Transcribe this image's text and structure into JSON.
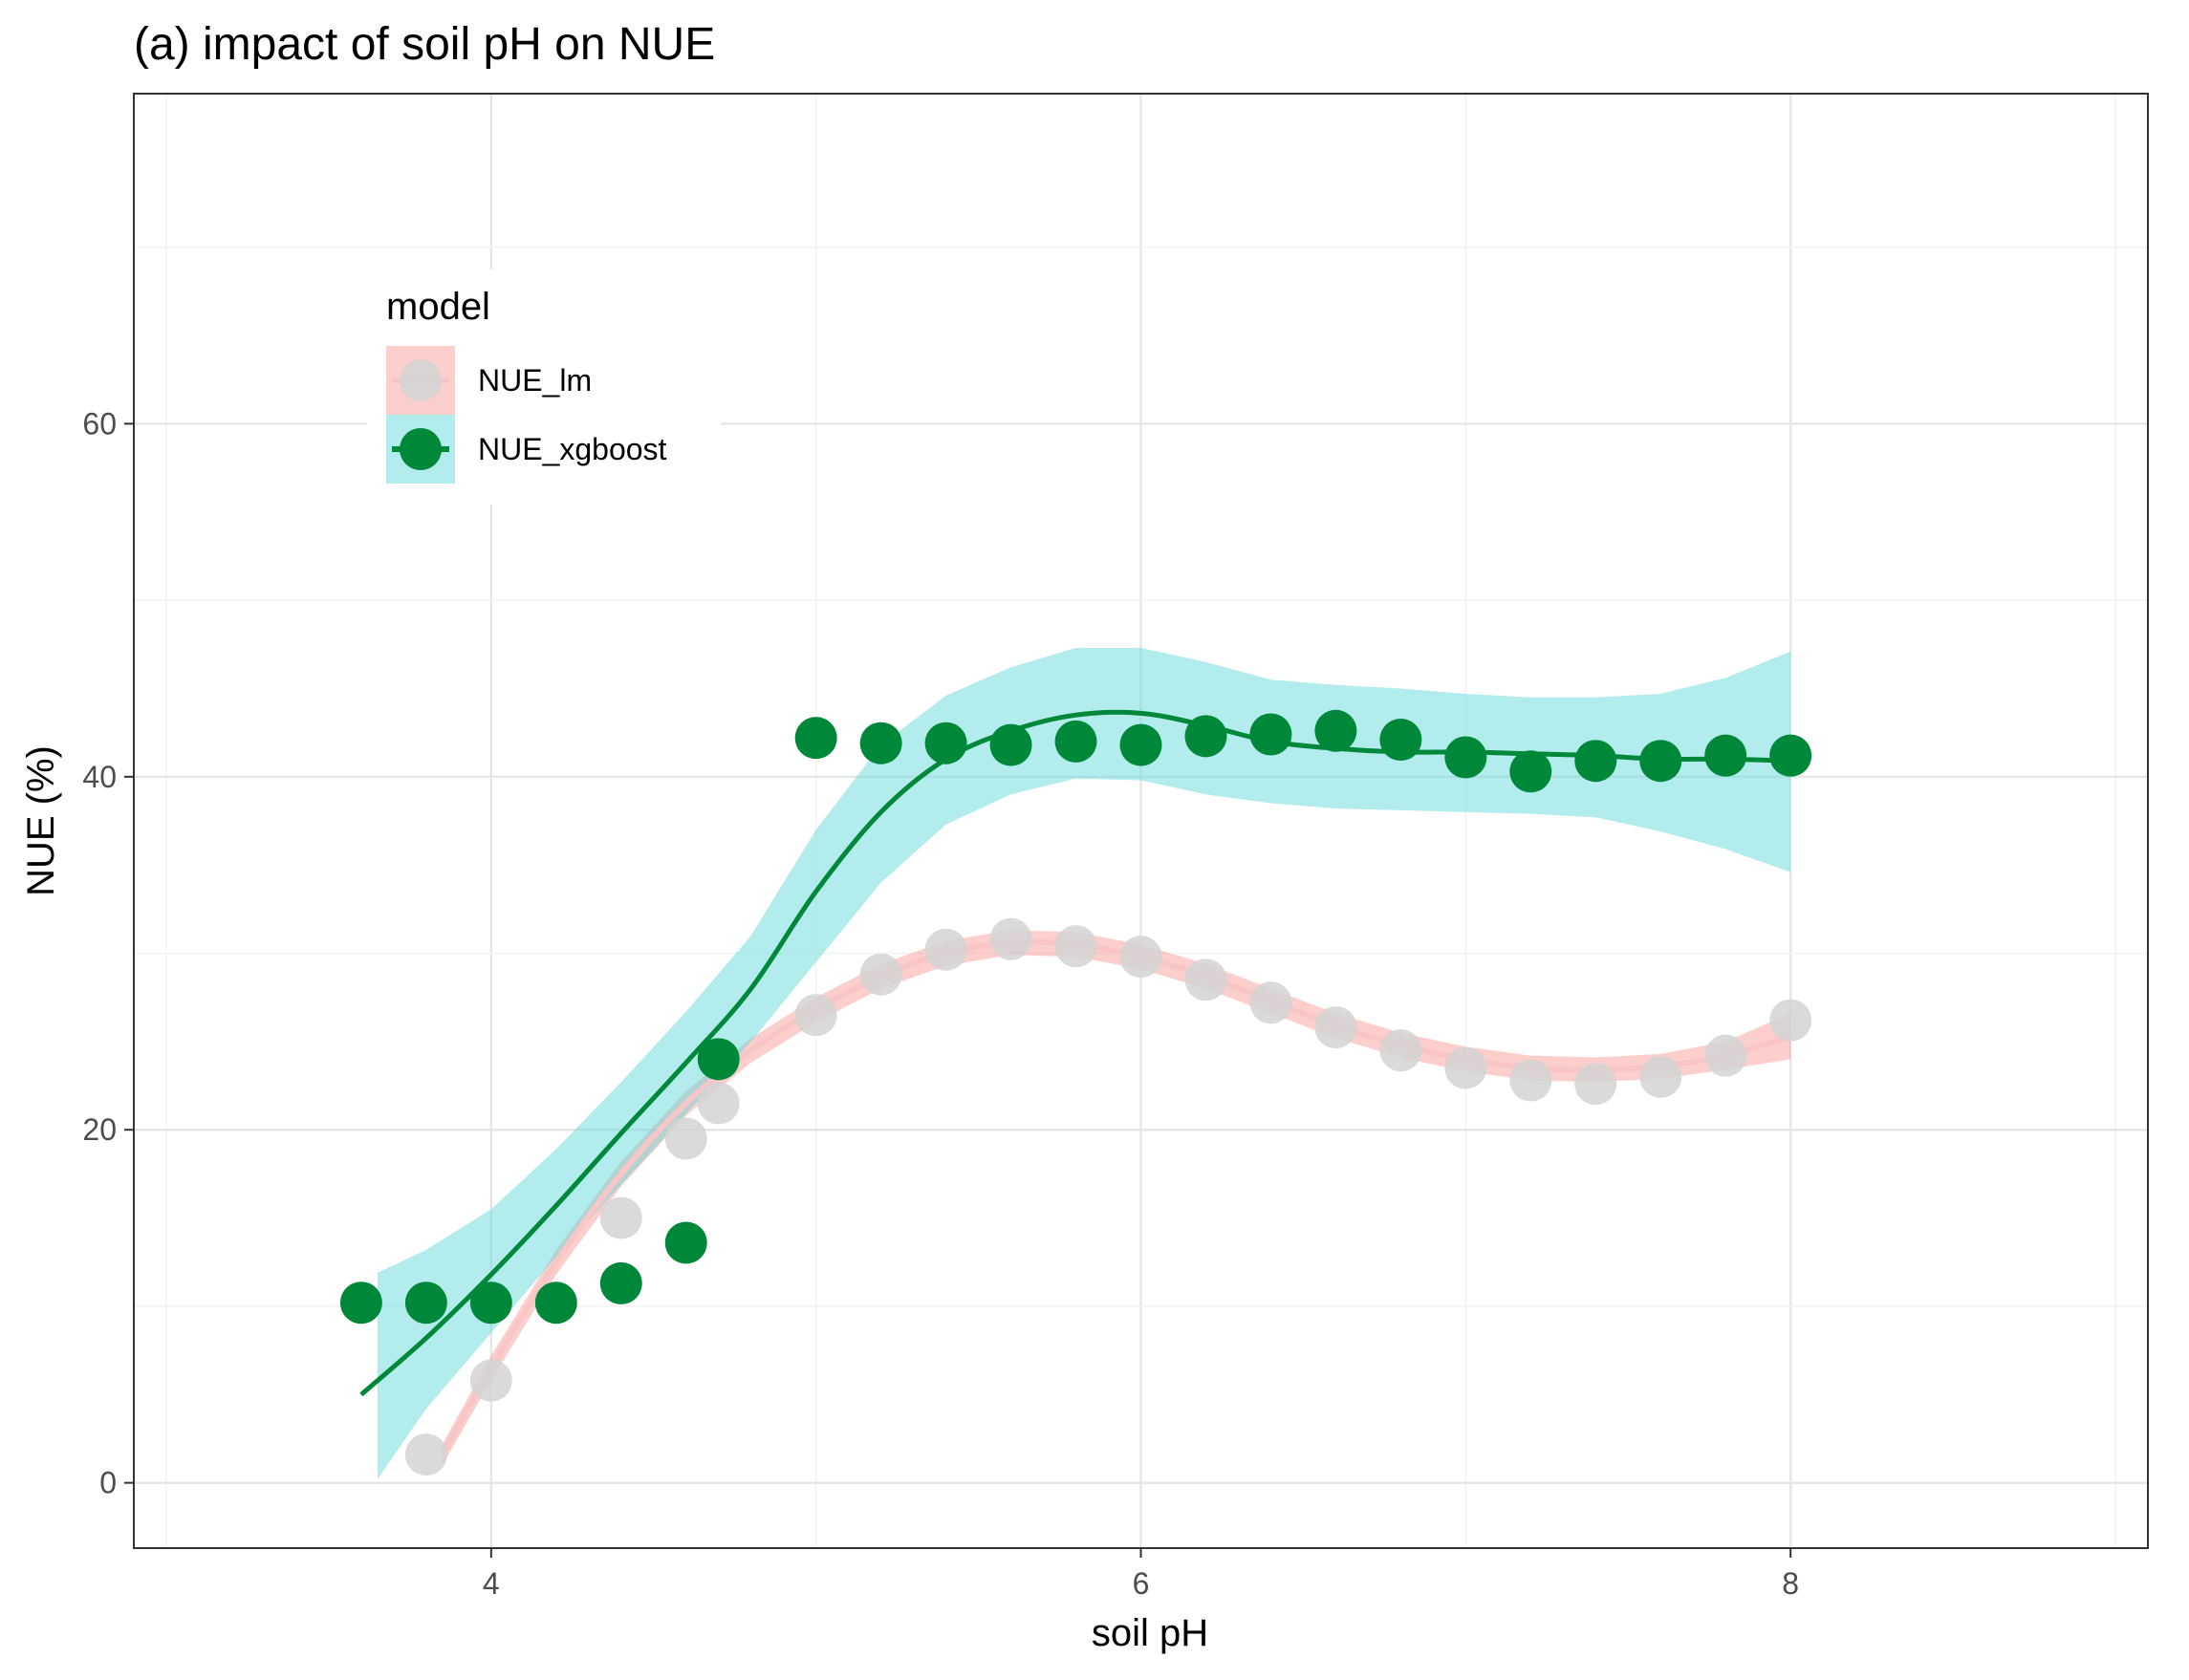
{
  "chart_data": {
    "type": "scatter",
    "title": "(a) impact of soil pH on NUE",
    "xlabel": "soil pH",
    "ylabel": "NUE (%)",
    "xlim": [
      2.9,
      9.1
    ],
    "ylim": [
      -3.7,
      78.7
    ],
    "x_ticks": [
      4,
      6,
      8
    ],
    "y_ticks": [
      0,
      20,
      40,
      60
    ],
    "grid": true,
    "legend": {
      "title": "model",
      "position": "top-left inside"
    },
    "series": [
      {
        "name": "NUE_lm",
        "point_color": "#d3d3d3",
        "line_color": "#f8c6c6",
        "ribbon_color": "#f8766d",
        "points": [
          [
            3.8,
            1.6
          ],
          [
            4.0,
            5.8
          ],
          [
            4.4,
            15.0
          ],
          [
            4.6,
            19.5
          ],
          [
            4.7,
            21.5
          ],
          [
            5.0,
            26.5
          ],
          [
            5.2,
            28.8
          ],
          [
            5.4,
            30.2
          ],
          [
            5.6,
            30.8
          ],
          [
            5.8,
            30.4
          ],
          [
            6.0,
            29.8
          ],
          [
            6.2,
            28.5
          ],
          [
            6.4,
            27.2
          ],
          [
            6.6,
            25.8
          ],
          [
            6.8,
            24.5
          ],
          [
            7.0,
            23.5
          ],
          [
            7.2,
            22.8
          ],
          [
            7.4,
            22.6
          ],
          [
            7.6,
            23.0
          ],
          [
            7.8,
            24.2
          ],
          [
            8.0,
            26.2
          ]
        ],
        "smooth": [
          [
            3.85,
            1.6
          ],
          [
            4.0,
            6.5
          ],
          [
            4.2,
            12.5
          ],
          [
            4.4,
            17.5
          ],
          [
            4.6,
            21.5
          ],
          [
            4.8,
            24.5
          ],
          [
            5.0,
            26.8
          ],
          [
            5.2,
            28.7
          ],
          [
            5.4,
            30.0
          ],
          [
            5.6,
            30.6
          ],
          [
            5.8,
            30.5
          ],
          [
            6.0,
            29.8
          ],
          [
            6.2,
            28.7
          ],
          [
            6.4,
            27.3
          ],
          [
            6.6,
            25.9
          ],
          [
            6.8,
            24.8
          ],
          [
            7.0,
            24.0
          ],
          [
            7.2,
            23.5
          ],
          [
            7.4,
            23.4
          ],
          [
            7.6,
            23.6
          ],
          [
            7.8,
            24.2
          ],
          [
            8.0,
            25.3
          ]
        ],
        "ribbon_lower": [
          [
            3.85,
            1.0
          ],
          [
            4.0,
            5.8
          ],
          [
            4.2,
            11.8
          ],
          [
            4.4,
            16.8
          ],
          [
            4.6,
            20.8
          ],
          [
            4.8,
            23.8
          ],
          [
            5.0,
            26.1
          ],
          [
            5.2,
            28.0
          ],
          [
            5.4,
            29.3
          ],
          [
            5.6,
            29.9
          ],
          [
            5.8,
            29.8
          ],
          [
            6.0,
            29.1
          ],
          [
            6.2,
            28.0
          ],
          [
            6.4,
            26.6
          ],
          [
            6.6,
            25.2
          ],
          [
            6.8,
            24.1
          ],
          [
            7.0,
            23.3
          ],
          [
            7.2,
            22.8
          ],
          [
            7.4,
            22.7
          ],
          [
            7.6,
            22.9
          ],
          [
            7.8,
            23.4
          ],
          [
            8.0,
            24.0
          ]
        ],
        "ribbon_upper": [
          [
            3.85,
            2.2
          ],
          [
            4.0,
            7.2
          ],
          [
            4.2,
            13.2
          ],
          [
            4.4,
            18.2
          ],
          [
            4.6,
            22.2
          ],
          [
            4.8,
            25.2
          ],
          [
            5.0,
            27.5
          ],
          [
            5.2,
            29.4
          ],
          [
            5.4,
            30.7
          ],
          [
            5.6,
            31.3
          ],
          [
            5.8,
            31.2
          ],
          [
            6.0,
            30.5
          ],
          [
            6.2,
            29.4
          ],
          [
            6.4,
            28.0
          ],
          [
            6.6,
            26.6
          ],
          [
            6.8,
            25.5
          ],
          [
            7.0,
            24.7
          ],
          [
            7.2,
            24.2
          ],
          [
            7.4,
            24.1
          ],
          [
            7.6,
            24.3
          ],
          [
            7.8,
            25.0
          ],
          [
            8.0,
            26.6
          ]
        ]
      },
      {
        "name": "NUE_xgboost",
        "point_color": "#00883a",
        "line_color": "#00883a",
        "ribbon_color": "#66d9d9",
        "points": [
          [
            3.6,
            10.2
          ],
          [
            3.8,
            10.2
          ],
          [
            4.0,
            10.2
          ],
          [
            4.2,
            10.2
          ],
          [
            4.4,
            11.3
          ],
          [
            4.6,
            13.6
          ],
          [
            4.7,
            24.0
          ],
          [
            5.0,
            42.2
          ],
          [
            5.2,
            41.9
          ],
          [
            5.4,
            41.9
          ],
          [
            5.6,
            41.8
          ],
          [
            5.8,
            42.0
          ],
          [
            6.0,
            41.8
          ],
          [
            6.2,
            42.3
          ],
          [
            6.4,
            42.4
          ],
          [
            6.6,
            42.6
          ],
          [
            6.8,
            42.1
          ],
          [
            7.0,
            41.1
          ],
          [
            7.2,
            40.3
          ],
          [
            7.4,
            40.9
          ],
          [
            7.6,
            40.9
          ],
          [
            7.8,
            41.2
          ],
          [
            8.0,
            41.2
          ]
        ],
        "smooth": [
          [
            3.6,
            5.0
          ],
          [
            3.8,
            8.2
          ],
          [
            4.0,
            11.8
          ],
          [
            4.2,
            15.7
          ],
          [
            4.4,
            19.8
          ],
          [
            4.6,
            23.8
          ],
          [
            4.8,
            28.0
          ],
          [
            5.0,
            33.5
          ],
          [
            5.2,
            38.0
          ],
          [
            5.4,
            41.0
          ],
          [
            5.6,
            42.6
          ],
          [
            5.8,
            43.5
          ],
          [
            6.0,
            43.6
          ],
          [
            6.2,
            42.9
          ],
          [
            6.4,
            42.0
          ],
          [
            6.6,
            41.6
          ],
          [
            6.8,
            41.4
          ],
          [
            7.0,
            41.4
          ],
          [
            7.2,
            41.3
          ],
          [
            7.4,
            41.2
          ],
          [
            7.6,
            41.0
          ],
          [
            7.8,
            41.0
          ],
          [
            8.0,
            40.9
          ]
        ],
        "ribbon_lower": [
          [
            3.65,
            0.2
          ],
          [
            3.8,
            4.2
          ],
          [
            4.0,
            8.5
          ],
          [
            4.2,
            12.8
          ],
          [
            4.4,
            16.9
          ],
          [
            4.6,
            20.9
          ],
          [
            4.8,
            25.0
          ],
          [
            5.0,
            29.5
          ],
          [
            5.2,
            34.0
          ],
          [
            5.4,
            37.3
          ],
          [
            5.6,
            39.0
          ],
          [
            5.8,
            39.9
          ],
          [
            6.0,
            39.8
          ],
          [
            6.2,
            39.0
          ],
          [
            6.4,
            38.5
          ],
          [
            6.6,
            38.2
          ],
          [
            6.8,
            38.1
          ],
          [
            7.0,
            38.0
          ],
          [
            7.2,
            37.9
          ],
          [
            7.4,
            37.7
          ],
          [
            7.6,
            36.9
          ],
          [
            7.8,
            35.9
          ],
          [
            8.0,
            34.6
          ]
        ],
        "ribbon_upper": [
          [
            3.65,
            11.9
          ],
          [
            3.8,
            13.2
          ],
          [
            4.0,
            15.5
          ],
          [
            4.2,
            18.9
          ],
          [
            4.4,
            22.7
          ],
          [
            4.6,
            26.7
          ],
          [
            4.8,
            31.0
          ],
          [
            5.0,
            37.0
          ],
          [
            5.2,
            41.8
          ],
          [
            5.4,
            44.6
          ],
          [
            5.6,
            46.2
          ],
          [
            5.8,
            47.3
          ],
          [
            6.0,
            47.3
          ],
          [
            6.2,
            46.5
          ],
          [
            6.4,
            45.5
          ],
          [
            6.6,
            45.2
          ],
          [
            6.8,
            45.0
          ],
          [
            7.0,
            44.7
          ],
          [
            7.2,
            44.5
          ],
          [
            7.4,
            44.5
          ],
          [
            7.6,
            44.7
          ],
          [
            7.8,
            45.6
          ],
          [
            8.0,
            47.1
          ]
        ]
      }
    ]
  }
}
